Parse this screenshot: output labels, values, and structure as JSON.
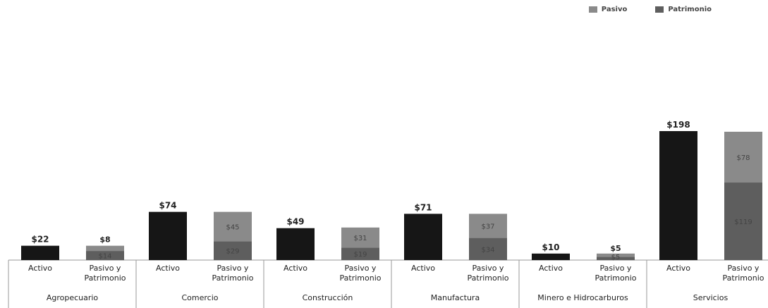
{
  "legend": {
    "pasivo": {
      "label": "Pasivo",
      "color": "#8a8a8a"
    },
    "patrimonio": {
      "label": "Patrimonio",
      "color": "#5e5e5e"
    }
  },
  "colors": {
    "activo": "#161616",
    "pasivo": "#8a8a8a",
    "patrimonio": "#5e5e5e"
  },
  "chart_data": {
    "type": "bar",
    "stacked": true,
    "title": "",
    "xlabel": "",
    "ylabel": "",
    "ylim": [
      0,
      200
    ],
    "legend_position": "top-right",
    "groups": [
      {
        "name": "Agropecuario",
        "bars": [
          {
            "label": "Activo",
            "activo": 22,
            "total_label": "$22"
          },
          {
            "label": "Pasivo y Patrimonio",
            "patrimonio": 14,
            "pasivo": 8,
            "seg_labels": [
              "$14",
              "$8"
            ]
          }
        ]
      },
      {
        "name": "Comercio",
        "bars": [
          {
            "label": "Activo",
            "activo": 74,
            "total_label": "$74"
          },
          {
            "label": "Pasivo y Patrimonio",
            "patrimonio": 29,
            "pasivo": 45,
            "seg_labels": [
              "$29",
              "$45"
            ]
          }
        ]
      },
      {
        "name": "Construcción",
        "bars": [
          {
            "label": "Activo",
            "activo": 49,
            "total_label": "$49"
          },
          {
            "label": "Pasivo y Patrimonio",
            "patrimonio": 19,
            "pasivo": 31,
            "seg_labels": [
              "$19",
              "$31"
            ]
          }
        ]
      },
      {
        "name": "Manufactura",
        "bars": [
          {
            "label": "Activo",
            "activo": 71,
            "total_label": "$71"
          },
          {
            "label": "Pasivo y Patrimonio",
            "patrimonio": 34,
            "pasivo": 37,
            "seg_labels": [
              "$34",
              "$37"
            ]
          }
        ]
      },
      {
        "name": "Minero e Hidrocarburos",
        "bars": [
          {
            "label": "Activo",
            "activo": 10,
            "total_label": "$10"
          },
          {
            "label": "Pasivo y Patrimonio",
            "patrimonio": 5,
            "pasivo": 5,
            "seg_labels": [
              "$5",
              "$5"
            ]
          }
        ]
      },
      {
        "name": "Servicios",
        "bars": [
          {
            "label": "Activo",
            "activo": 198,
            "total_label": "$198"
          },
          {
            "label": "Pasivo y Patrimonio",
            "patrimonio": 119,
            "pasivo": 78,
            "seg_labels": [
              "$119",
              "$78"
            ]
          }
        ]
      }
    ]
  }
}
